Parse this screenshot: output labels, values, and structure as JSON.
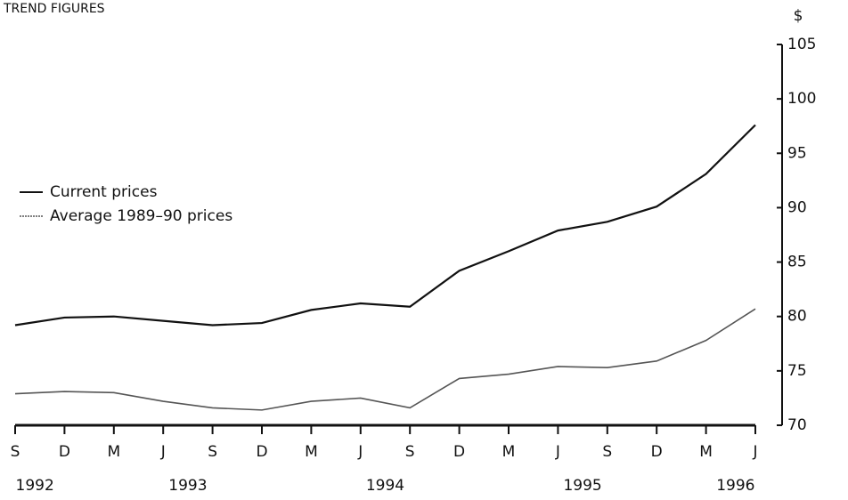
{
  "chart_data": {
    "type": "line",
    "title": "TREND FIGURES",
    "y_unit": "$",
    "categories": [
      "S",
      "D",
      "M",
      "J",
      "S",
      "D",
      "M",
      "J",
      "S",
      "D",
      "M",
      "J",
      "S",
      "D",
      "M",
      "J"
    ],
    "years": [
      "1992",
      "1993",
      "1994",
      "1995",
      "1996"
    ],
    "series": [
      {
        "name": "Current prices",
        "color": "#111111",
        "values": [
          79.2,
          79.9,
          80.0,
          79.6,
          79.2,
          79.4,
          80.6,
          81.2,
          80.9,
          84.2,
          86.0,
          87.9,
          88.7,
          90.1,
          93.1,
          97.6
        ]
      },
      {
        "name": "Average 1989–90 prices",
        "color": "#555555",
        "values": [
          72.9,
          73.1,
          73.0,
          72.2,
          71.6,
          71.4,
          72.2,
          72.5,
          71.6,
          74.3,
          74.7,
          75.4,
          75.3,
          75.9,
          77.8,
          80.7
        ]
      }
    ],
    "ylim": [
      70,
      105
    ],
    "yticks": [
      70,
      75,
      80,
      85,
      90,
      95,
      100,
      105
    ],
    "y_axis_side": "right",
    "grid": false
  }
}
